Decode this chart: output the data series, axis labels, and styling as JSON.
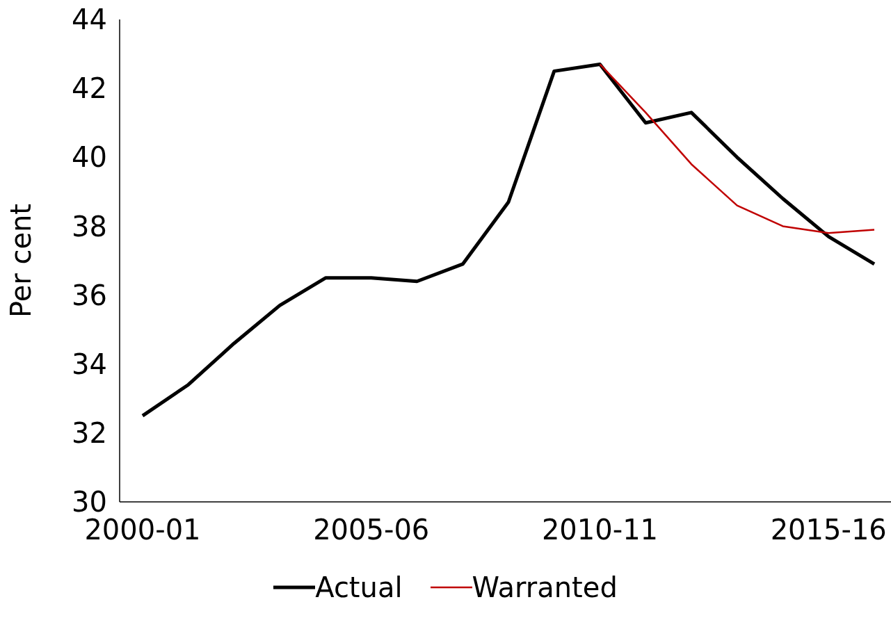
{
  "chart_data": {
    "type": "line",
    "ylabel": "Per cent",
    "categories": [
      "2000-01",
      null,
      null,
      null,
      null,
      "2005-06",
      null,
      null,
      null,
      null,
      "2010-11",
      null,
      null,
      null,
      null,
      "2015-16",
      null
    ],
    "series": [
      {
        "name": "Actual",
        "color": "#000000",
        "values": [
          32.5,
          33.4,
          34.6,
          35.7,
          36.5,
          36.5,
          36.4,
          36.9,
          38.7,
          42.5,
          42.7,
          41.0,
          41.3,
          40.0,
          38.8,
          37.7,
          36.9
        ]
      },
      {
        "name": "Warranted",
        "color": "#c00000",
        "values": [
          null,
          null,
          null,
          null,
          null,
          null,
          null,
          null,
          null,
          null,
          42.7,
          41.3,
          39.8,
          38.6,
          38.0,
          37.8,
          37.9
        ]
      }
    ],
    "ylim": [
      30,
      44
    ],
    "yticks": [
      30,
      32,
      34,
      36,
      38,
      40,
      42,
      44
    ],
    "grid": false,
    "legend": "bottom",
    "marker": "none",
    "line_style": "solid"
  }
}
